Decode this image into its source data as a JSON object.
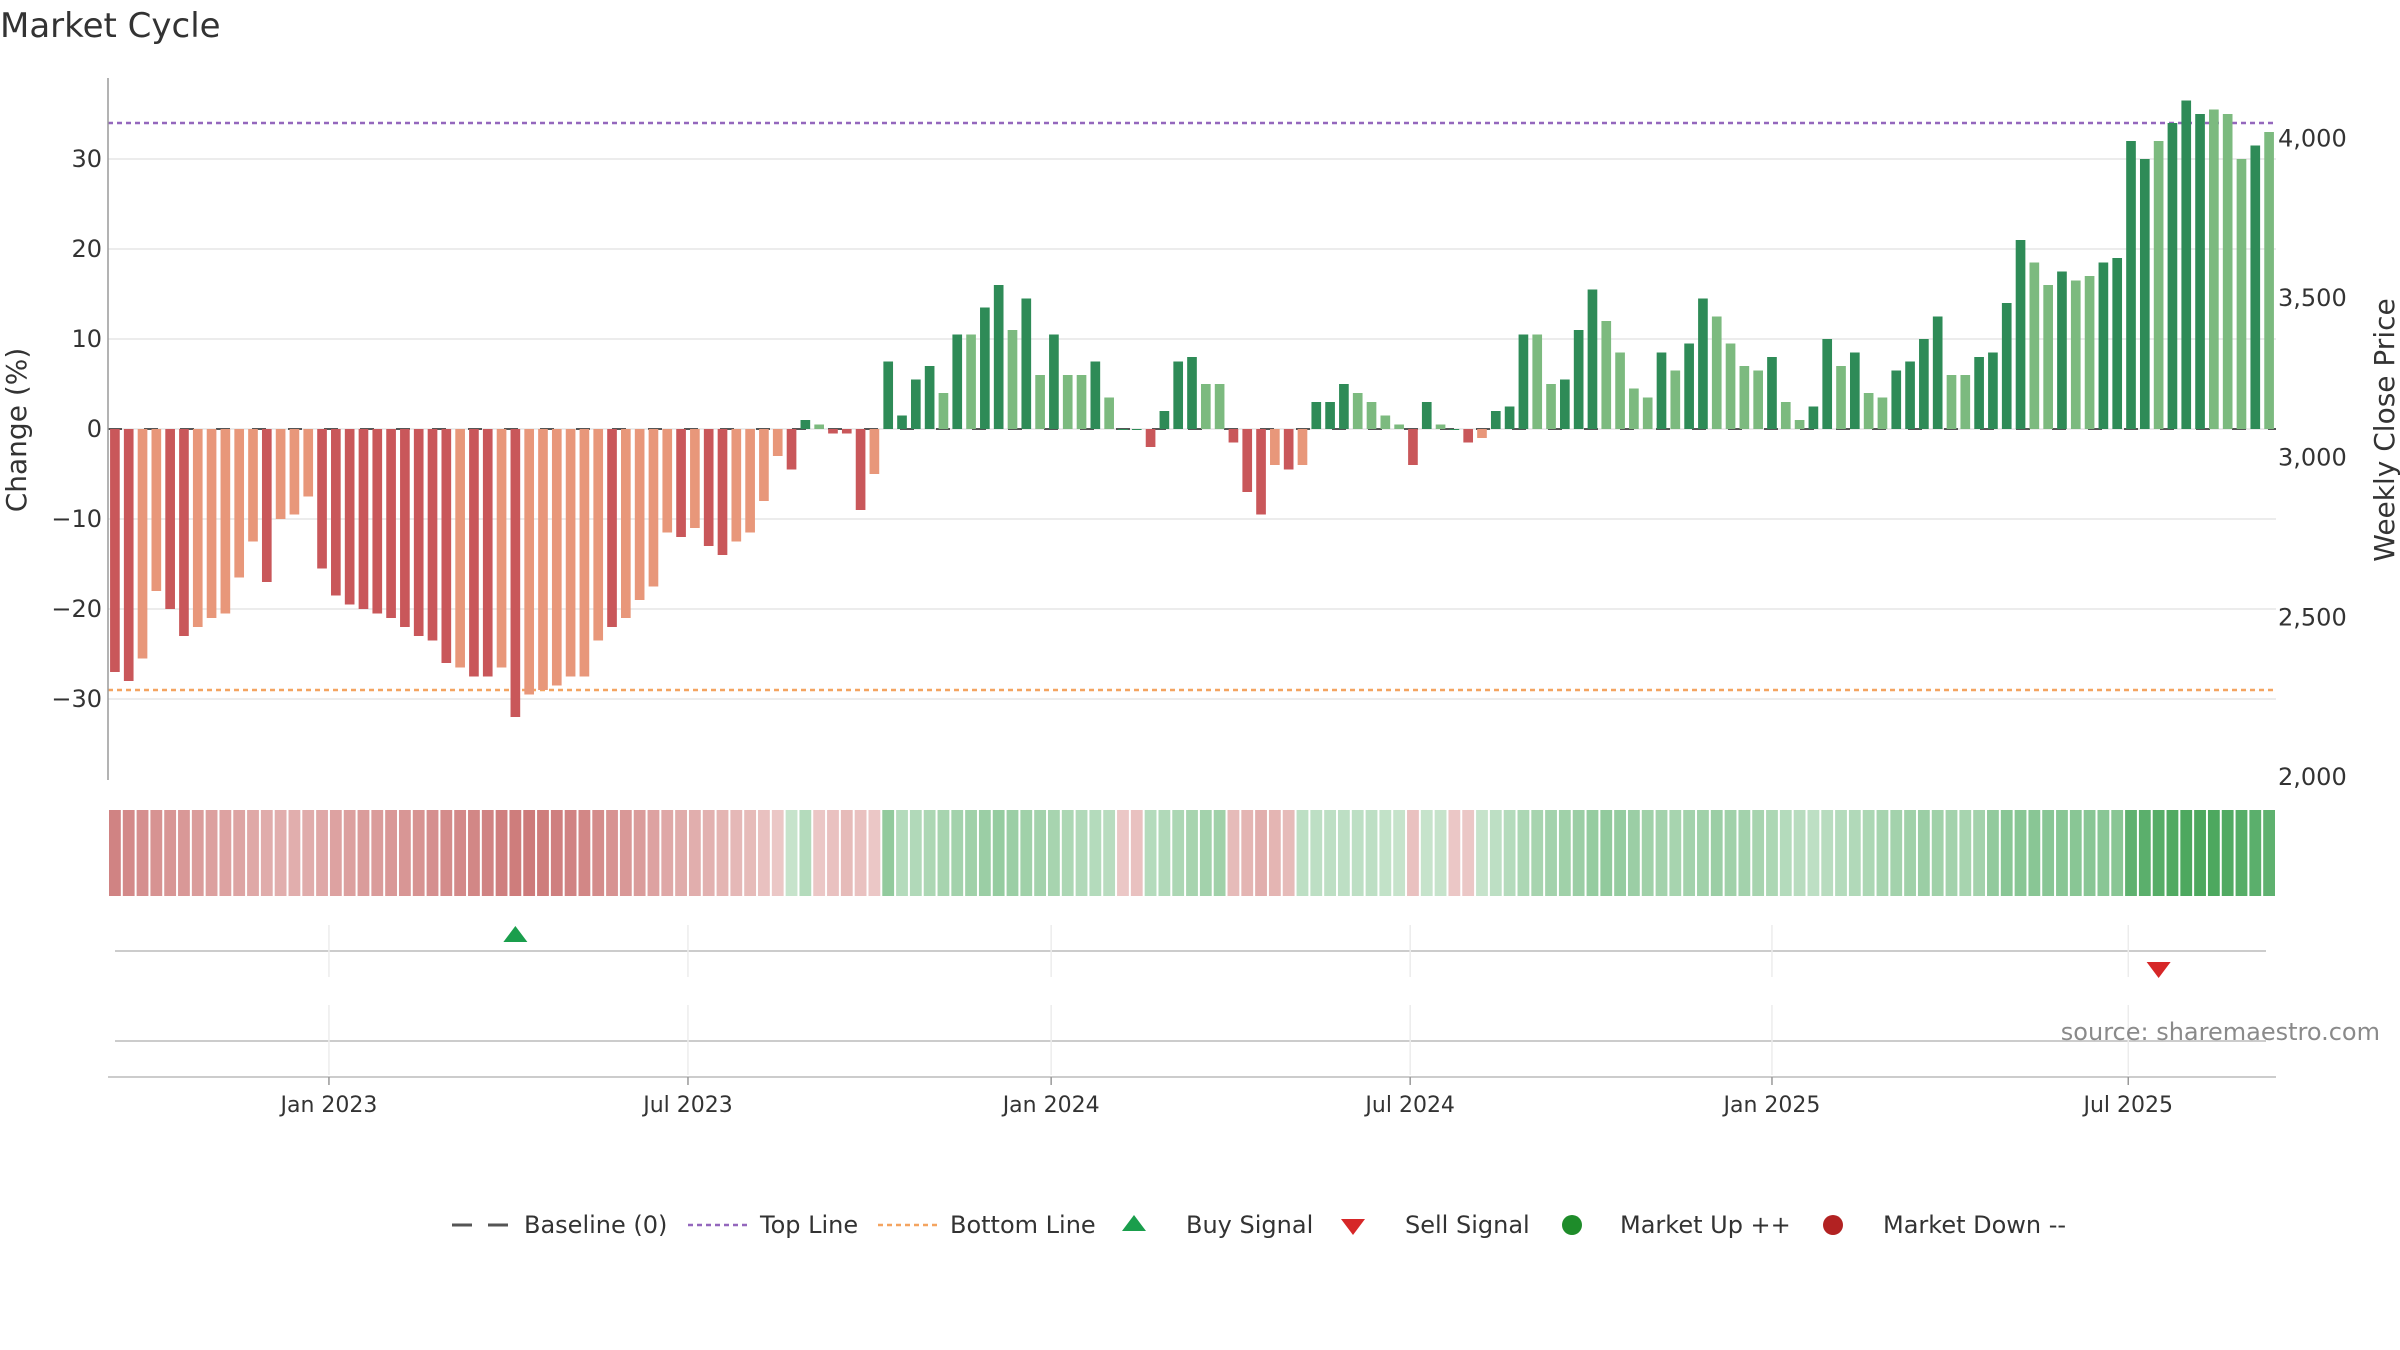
{
  "title": "Market Cycle",
  "source": "source: sharemaestro.com",
  "colors": {
    "neg_dark": "#c9575a",
    "neg_light": "#e8977a",
    "pos_dark": "#2e8b57",
    "pos_light": "#7cba7f",
    "top_line": "#9467bd",
    "bottom_line": "#f4a460",
    "buy": "#1a9e4c",
    "sell": "#d62728",
    "up": "#1e8c2a",
    "down": "#b22222",
    "baseline": "#555555"
  },
  "chart_data": {
    "type": "bar",
    "title": "Market Cycle",
    "ylabel": "Change (%)",
    "y2label": "Weekly Close Price",
    "ylim": [
      -39,
      39
    ],
    "y2lim": [
      1990,
      4190
    ],
    "yticks": [
      "30",
      "20",
      "10",
      "0",
      "−10",
      "−20",
      "−30"
    ],
    "y2ticks": [
      "4,000",
      "3,500",
      "3,000",
      "2,500",
      "2,000"
    ],
    "y2tick_values": [
      4000,
      3500,
      3000,
      2500,
      2000
    ],
    "ytick_values": [
      30,
      20,
      10,
      0,
      -10,
      -20,
      -30
    ],
    "xticks": [
      "Jan 2023",
      "Jul 2023",
      "Jan 2024",
      "Jul 2024",
      "Jan 2025",
      "Jul 2025"
    ],
    "xtick_positions": [
      16,
      42,
      68.3,
      94.3,
      120.5,
      146.3
    ],
    "top_line": 34,
    "bottom_line": -29,
    "grid": true,
    "legend_position": "bottom-center",
    "values": [
      -27,
      -28,
      -25.5,
      -18,
      -20,
      -23,
      -22,
      -21,
      -20.5,
      -16.5,
      -12.5,
      -17,
      -10,
      -9.5,
      -7.5,
      -15.5,
      -18.5,
      -19.5,
      -20,
      -20.5,
      -21,
      -22,
      -23,
      -23.5,
      -26,
      -26.5,
      -27.5,
      -27.5,
      -26.5,
      -32,
      -29.5,
      -29,
      -28.5,
      -27.5,
      -27.5,
      -23.5,
      -22,
      -21,
      -19,
      -17.5,
      -11.5,
      -12,
      -11,
      -13,
      -14,
      -12.5,
      -11.5,
      -8,
      -3,
      -4.5,
      1,
      0.5,
      -0.5,
      -0.5,
      -9,
      -5,
      7.5,
      1.5,
      5.5,
      7,
      4,
      10.5,
      10.5,
      13.5,
      16,
      11,
      14.5,
      6,
      10.5,
      6,
      6,
      7.5,
      3.5,
      0,
      0,
      -2,
      2,
      7.5,
      8,
      5,
      5,
      -1.5,
      -7,
      -9.5,
      -4,
      -4.5,
      -4,
      3,
      3,
      5,
      4,
      3,
      1.5,
      0.5,
      -4,
      3,
      0.5,
      0,
      -1.5,
      -1,
      2,
      2.5,
      10.5,
      10.5,
      5,
      5.5,
      11,
      15.5,
      12,
      8.5,
      4.5,
      3.5,
      8.5,
      6.5,
      9.5,
      14.5,
      12.5,
      9.5,
      7,
      6.5,
      8,
      3,
      1,
      2.5,
      10,
      7,
      8.5,
      4,
      3.5,
      6.5,
      7.5,
      10,
      12.5,
      6,
      6,
      8,
      8.5,
      14,
      21,
      18.5,
      16,
      17.5,
      16.5,
      17,
      18.5,
      19,
      32,
      30,
      32,
      34,
      36.5,
      35,
      35.5,
      35,
      30,
      31.5,
      33
    ],
    "shades": [
      0,
      0,
      1,
      1,
      0,
      0,
      1,
      1,
      1,
      1,
      1,
      0,
      1,
      1,
      1,
      0,
      0,
      0,
      0,
      0,
      0,
      0,
      0,
      0,
      0,
      1,
      0,
      0,
      1,
      0,
      1,
      1,
      1,
      1,
      1,
      1,
      0,
      1,
      1,
      1,
      1,
      0,
      1,
      0,
      0,
      1,
      1,
      1,
      1,
      0,
      0,
      1,
      0,
      0,
      0,
      1,
      0,
      0,
      0,
      0,
      1,
      0,
      1,
      0,
      0,
      1,
      0,
      1,
      0,
      1,
      1,
      0,
      1,
      0,
      0,
      0,
      0,
      0,
      0,
      1,
      1,
      0,
      0,
      0,
      1,
      0,
      1,
      0,
      0,
      0,
      1,
      1,
      1,
      1,
      0,
      0,
      1,
      0,
      0,
      1,
      0,
      0,
      0,
      1,
      1,
      0,
      0,
      0,
      1,
      1,
      1,
      1,
      0,
      1,
      0,
      0,
      1,
      1,
      1,
      1,
      0,
      1,
      1,
      0,
      0,
      1,
      0,
      1,
      1,
      0,
      0,
      0,
      0,
      1,
      1,
      0,
      0,
      0,
      0,
      1,
      1,
      0,
      1,
      1,
      0,
      0,
      0,
      0,
      1,
      0,
      0,
      0,
      1,
      1,
      1,
      0,
      1,
      0
    ],
    "heatmap": [
      -0.75,
      -0.7,
      -0.65,
      -0.62,
      -0.6,
      -0.58,
      -0.55,
      -0.52,
      -0.5,
      -0.48,
      -0.45,
      -0.42,
      -0.4,
      -0.4,
      -0.42,
      -0.45,
      -0.5,
      -0.52,
      -0.55,
      -0.55,
      -0.58,
      -0.6,
      -0.62,
      -0.65,
      -0.68,
      -0.7,
      -0.72,
      -0.75,
      -0.78,
      -0.8,
      -0.82,
      -0.8,
      -0.78,
      -0.75,
      -0.72,
      -0.68,
      -0.62,
      -0.58,
      -0.55,
      -0.5,
      -0.45,
      -0.42,
      -0.4,
      -0.38,
      -0.35,
      -0.32,
      -0.3,
      -0.25,
      -0.2,
      0.2,
      0.3,
      -0.2,
      -0.25,
      -0.3,
      -0.25,
      -0.2,
      0.5,
      0.3,
      0.32,
      0.35,
      0.38,
      0.4,
      0.42,
      0.45,
      0.48,
      0.45,
      0.42,
      0.4,
      0.38,
      0.35,
      0.32,
      0.3,
      0.28,
      -0.2,
      -0.25,
      0.3,
      0.32,
      0.35,
      0.38,
      0.4,
      0.42,
      -0.3,
      -0.35,
      -0.4,
      -0.35,
      -0.3,
      0.25,
      0.25,
      0.25,
      0.25,
      0.25,
      0.25,
      0.22,
      0.2,
      -0.25,
      0.2,
      0.2,
      -0.2,
      -0.2,
      0.2,
      0.25,
      0.3,
      0.35,
      0.38,
      0.4,
      0.42,
      0.45,
      0.48,
      0.5,
      0.48,
      0.45,
      0.42,
      0.4,
      0.38,
      0.4,
      0.42,
      0.45,
      0.42,
      0.4,
      0.38,
      0.35,
      0.3,
      0.28,
      0.25,
      0.28,
      0.3,
      0.32,
      0.35,
      0.38,
      0.4,
      0.42,
      0.45,
      0.42,
      0.4,
      0.38,
      0.4,
      0.5,
      0.55,
      0.55,
      0.55,
      0.55,
      0.55,
      0.55,
      0.55,
      0.55,
      0.55,
      0.8,
      0.82,
      0.85,
      0.88,
      0.9,
      0.9,
      0.9,
      0.88,
      0.85,
      0.82,
      0.8
    ],
    "price": [],
    "buy_signals": [
      29.5
    ],
    "sell_signals": [
      148.5
    ],
    "legend": [
      {
        "label": "Baseline (0)",
        "marker": "dash"
      },
      {
        "label": "Top Line",
        "marker": "dot-purple"
      },
      {
        "label": "Bottom Line",
        "marker": "dot-orange"
      },
      {
        "label": "Buy Signal",
        "marker": "triangle-up"
      },
      {
        "label": "Sell Signal",
        "marker": "triangle-down"
      },
      {
        "label": "Market Up ++",
        "marker": "circle-green"
      },
      {
        "label": "Market Down --",
        "marker": "circle-red"
      }
    ]
  }
}
